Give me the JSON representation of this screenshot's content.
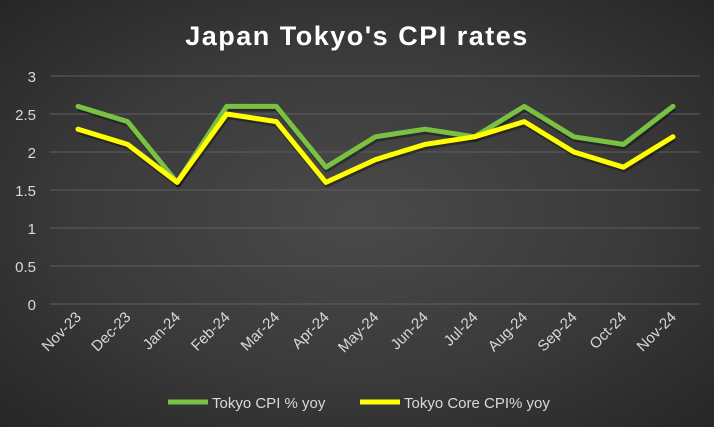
{
  "chart_data": {
    "type": "line",
    "title": "Japan Tokyo's CPI rates",
    "xlabel": "",
    "ylabel": "",
    "ylim": [
      0,
      3
    ],
    "yticks": [
      "0",
      "0.5",
      "1",
      "1.5",
      "2",
      "2.5",
      "3"
    ],
    "grid": true,
    "legend_placement": "bottom",
    "categories": [
      "Nov-23",
      "Dec-23",
      "Jan-24",
      "Feb-24",
      "Mar-24",
      "Apr-24",
      "May-24",
      "Jun-24",
      "Jul-24",
      "Aug-24",
      "Sep-24",
      "Oct-24",
      "Nov-24"
    ],
    "series": [
      {
        "name": "Tokyo CPI % yoy",
        "color": "#7ac143",
        "values": [
          2.6,
          2.4,
          1.6,
          2.6,
          2.6,
          1.8,
          2.2,
          2.3,
          2.2,
          2.6,
          2.2,
          2.1,
          2.6
        ]
      },
      {
        "name": "Tokyo Core CPI% yoy",
        "color": "#ffff00",
        "values": [
          2.3,
          2.1,
          1.6,
          2.5,
          2.4,
          1.6,
          1.9,
          2.1,
          2.2,
          2.4,
          2.0,
          1.8,
          2.2
        ]
      }
    ]
  }
}
